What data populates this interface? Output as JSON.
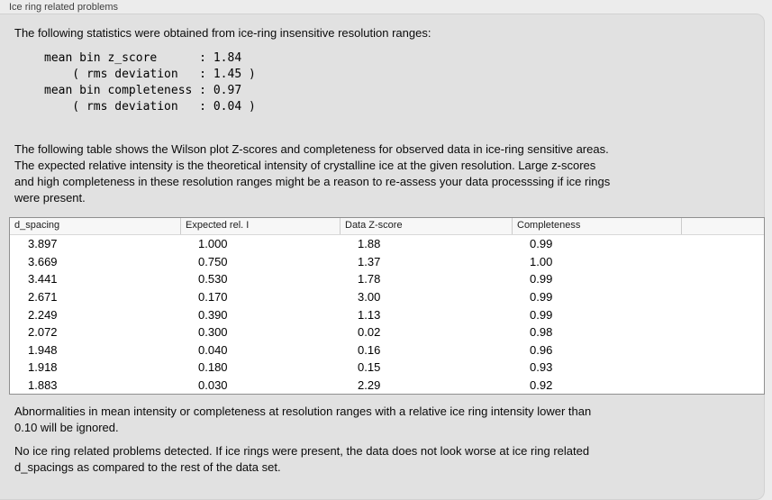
{
  "panel": {
    "title": "Ice ring related problems"
  },
  "intro": {
    "text": "The following statistics were obtained from ice-ring insensitive resolution ranges:"
  },
  "summary_stats": {
    "pre_text": "mean bin z_score      : 1.84\n    ( rms deviation   : 1.45 )\nmean bin completeness : 0.97\n    ( rms deviation   : 0.04 )",
    "mean_bin_z_score": "1.84",
    "z_score_rms_deviation": "1.45",
    "mean_bin_completeness": "0.97",
    "completeness_rms_deviation": "0.04"
  },
  "description": {
    "lines": [
      "The following table shows the Wilson plot Z-scores and completeness for observed data in ice-ring sensitive areas.",
      "The expected relative intensity is the theoretical intensity of crystalline ice at the given resolution. Large z-scores",
      "and high completeness in these resolution ranges might be a reason to re-assess your data processsing if ice rings",
      "were present."
    ]
  },
  "table": {
    "columns": [
      "d_spacing",
      "Expected rel. I",
      "Data Z-score",
      "Completeness"
    ],
    "rows": [
      [
        "3.897",
        "1.000",
        "1.88",
        "0.99"
      ],
      [
        "3.669",
        "0.750",
        "1.37",
        "1.00"
      ],
      [
        "3.441",
        "0.530",
        "1.78",
        "0.99"
      ],
      [
        "2.671",
        "0.170",
        "3.00",
        "0.99"
      ],
      [
        "2.249",
        "0.390",
        "1.13",
        "0.99"
      ],
      [
        "2.072",
        "0.300",
        "0.02",
        "0.98"
      ],
      [
        "1.948",
        "0.040",
        "0.16",
        "0.96"
      ],
      [
        "1.918",
        "0.180",
        "0.15",
        "0.93"
      ],
      [
        "1.883",
        "0.030",
        "2.29",
        "0.92"
      ]
    ]
  },
  "ignore_note": {
    "lines": [
      "Abnormalities in mean intensity or completeness at resolution ranges with a relative ice ring intensity lower than",
      "0.10 will be ignored."
    ]
  },
  "conclusion": {
    "lines": [
      "No ice ring related problems detected. If ice rings were present, the data does not look worse at ice ring related",
      "d_spacings as compared to the rest of the data set."
    ]
  }
}
